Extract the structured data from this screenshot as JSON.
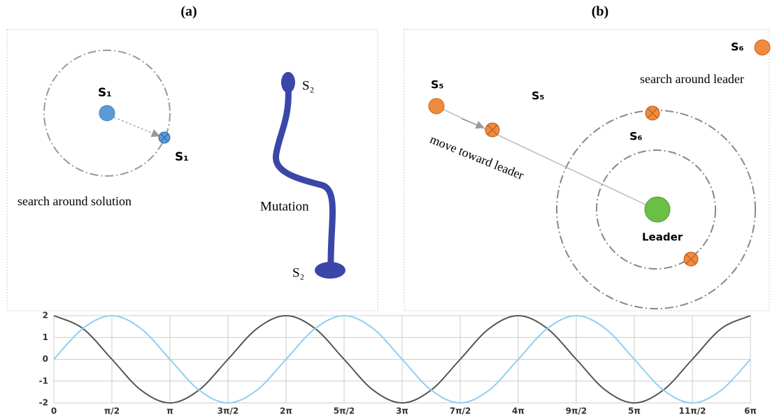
{
  "panels": {
    "a": {
      "label": "(a)",
      "s1_top": "S₁",
      "s1_bottom": "S₁",
      "caption": "search around solution",
      "mutation": "Mutation",
      "s2_top": "S₂",
      "s2_bottom": "S₂"
    },
    "b": {
      "label": "(b)",
      "s5_left": "S₅",
      "s5_mid": "S₅",
      "s6_mid": "S₆",
      "s6_corner": "S₆",
      "caption": "search around leader",
      "move": "move toward leader",
      "leader": "Leader"
    }
  },
  "chart_data": {
    "type": "line",
    "x": [
      0,
      0.785,
      1.571,
      2.356,
      3.142,
      3.927,
      4.712,
      5.498,
      6.283,
      7.069,
      7.854,
      8.639,
      9.425,
      10.21,
      10.996,
      11.781,
      12.566,
      13.352,
      14.137,
      14.923,
      15.708,
      16.493,
      17.279,
      18.064,
      18.85
    ],
    "series": [
      {
        "color": "#555555",
        "values": [
          2,
          1.41,
          0,
          -1.41,
          -2,
          -1.41,
          0,
          1.41,
          2,
          1.41,
          0,
          -1.41,
          -2,
          -1.41,
          0,
          1.41,
          2,
          1.41,
          0,
          -1.41,
          -2,
          -1.41,
          0,
          1.41,
          2
        ]
      },
      {
        "color": "#8fd0f0",
        "values": [
          0,
          1.41,
          2,
          1.41,
          0,
          -1.41,
          -2,
          -1.41,
          0,
          1.41,
          2,
          1.41,
          0,
          -1.41,
          -2,
          -1.41,
          0,
          1.41,
          2,
          1.41,
          0,
          -1.41,
          -2,
          -1.41,
          0
        ]
      }
    ],
    "xlim": [
      0,
      18.85
    ],
    "ylim": [
      -2,
      2
    ],
    "xticks": [
      0,
      {
        "value": 1.571,
        "label": "π/2"
      },
      {
        "value": 3.142,
        "label": "π"
      },
      {
        "value": 4.712,
        "label": "3π/2"
      },
      {
        "value": 6.283,
        "label": "2π"
      },
      {
        "value": 7.854,
        "label": "5π/2"
      },
      {
        "value": 9.425,
        "label": "3π"
      },
      {
        "value": 10.996,
        "label": "7π/2"
      },
      {
        "value": 12.566,
        "label": "4π"
      },
      {
        "value": 14.137,
        "label": "9π/2"
      },
      {
        "value": 15.708,
        "label": "5π"
      },
      {
        "value": 17.279,
        "label": "11π/2"
      },
      {
        "value": 18.85,
        "label": "6π"
      }
    ],
    "yticks": [
      2,
      1,
      0,
      -1,
      -2
    ],
    "grid": true
  }
}
